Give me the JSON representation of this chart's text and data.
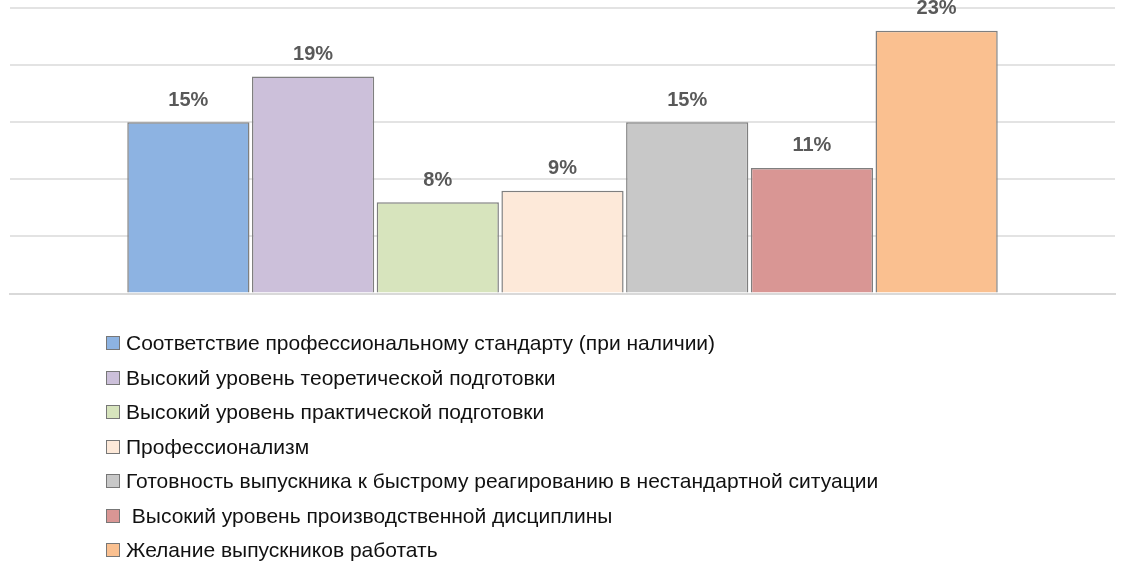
{
  "chart_data": {
    "type": "bar",
    "categories": [
      null
    ],
    "series": [
      {
        "name": "Соответствие профессиональному стандарту (при наличии)",
        "color": "#8db3e2",
        "values": [
          15
        ],
        "value_labels": [
          "15%"
        ]
      },
      {
        "name": "Высокий уровень теоретической подготовки",
        "color": "#ccc0da",
        "values": [
          19
        ],
        "value_labels": [
          "19%"
        ]
      },
      {
        "name": "Высокий уровень практической подготовки",
        "color": "#d7e4bd",
        "values": [
          8
        ],
        "value_labels": [
          "8%"
        ]
      },
      {
        "name": "Профессионализм",
        "color": "#fde9d9",
        "values": [
          9
        ],
        "value_labels": [
          "9%"
        ]
      },
      {
        "name": "Готовность выпускника к быстрому реагированию в нестандартной ситуации",
        "color": "#c8c8c8",
        "values": [
          15
        ],
        "value_labels": [
          "15%"
        ]
      },
      {
        "name": " Высокий уровень производственной дисциплины",
        "color": "#d99694",
        "values": [
          11
        ],
        "value_labels": [
          "11%"
        ]
      },
      {
        "name": "Желание выпускников работать",
        "color": "#fac090",
        "values": [
          23
        ],
        "value_labels": [
          "23%"
        ]
      }
    ],
    "grid": "y",
    "legend": "bottom"
  }
}
